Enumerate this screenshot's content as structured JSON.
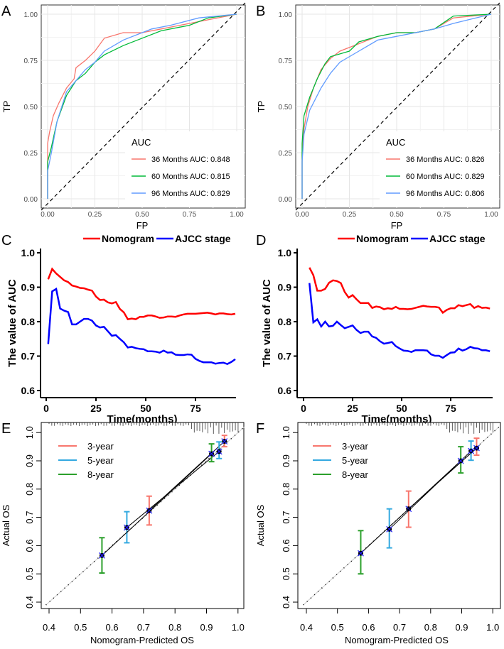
{
  "chart_data": [
    {
      "panel": "A",
      "type": "line",
      "xlabel": "FP",
      "ylabel": "TP",
      "xlim": [
        0,
        1
      ],
      "ylim": [
        0,
        1
      ],
      "xticks": [
        "0.00",
        "0.25",
        "0.50",
        "0.75",
        "1.00"
      ],
      "yticks": [
        "0.00",
        "0.25",
        "0.50",
        "0.75",
        "1.00"
      ],
      "grid": true,
      "reference_line": "diagonal dashed",
      "legend": {
        "title": "AUC",
        "placement": "bottom-right"
      },
      "series": [
        {
          "name": "36 Months AUC: 0.848",
          "color": "#F8766D",
          "points": [
            [
              0,
              0
            ],
            [
              0,
              0.3
            ],
            [
              0.01,
              0.36
            ],
            [
              0.03,
              0.45
            ],
            [
              0.06,
              0.52
            ],
            [
              0.1,
              0.6
            ],
            [
              0.14,
              0.65
            ],
            [
              0.15,
              0.71
            ],
            [
              0.2,
              0.75
            ],
            [
              0.25,
              0.8
            ],
            [
              0.3,
              0.87
            ],
            [
              0.4,
              0.9
            ],
            [
              0.5,
              0.9
            ],
            [
              0.6,
              0.92
            ],
            [
              0.75,
              0.95
            ],
            [
              1,
              1
            ]
          ]
        },
        {
          "name": "60 Months AUC: 0.815",
          "color": "#00BA38",
          "points": [
            [
              0,
              0
            ],
            [
              0,
              0.2
            ],
            [
              0.02,
              0.28
            ],
            [
              0.05,
              0.42
            ],
            [
              0.1,
              0.56
            ],
            [
              0.15,
              0.64
            ],
            [
              0.2,
              0.68
            ],
            [
              0.25,
              0.74
            ],
            [
              0.3,
              0.78
            ],
            [
              0.4,
              0.83
            ],
            [
              0.5,
              0.87
            ],
            [
              0.6,
              0.91
            ],
            [
              0.75,
              0.94
            ],
            [
              0.85,
              0.98
            ],
            [
              1,
              1
            ]
          ]
        },
        {
          "name": "96 Months AUC: 0.829",
          "color": "#619CFF",
          "points": [
            [
              0,
              0
            ],
            [
              0,
              0.15
            ],
            [
              0.02,
              0.25
            ],
            [
              0.05,
              0.42
            ],
            [
              0.1,
              0.58
            ],
            [
              0.15,
              0.64
            ],
            [
              0.2,
              0.7
            ],
            [
              0.25,
              0.74
            ],
            [
              0.3,
              0.8
            ],
            [
              0.4,
              0.86
            ],
            [
              0.5,
              0.9
            ],
            [
              0.55,
              0.92
            ],
            [
              0.65,
              0.94
            ],
            [
              0.8,
              0.98
            ],
            [
              1,
              1
            ]
          ]
        }
      ]
    },
    {
      "panel": "B",
      "type": "line",
      "xlabel": "FP",
      "ylabel": "TP",
      "xlim": [
        0,
        1
      ],
      "ylim": [
        0,
        1
      ],
      "xticks": [
        "0.00",
        "0.25",
        "0.50",
        "0.75",
        "1.00"
      ],
      "yticks": [
        "0.00",
        "0.25",
        "0.50",
        "0.75",
        "1.00"
      ],
      "grid": true,
      "reference_line": "diagonal dashed",
      "legend": {
        "title": "AUC",
        "placement": "bottom-right"
      },
      "series": [
        {
          "name": "36 Months AUC: 0.826",
          "color": "#F8766D",
          "points": [
            [
              0,
              0
            ],
            [
              0,
              0.25
            ],
            [
              0.01,
              0.38
            ],
            [
              0.03,
              0.5
            ],
            [
              0.06,
              0.6
            ],
            [
              0.1,
              0.7
            ],
            [
              0.15,
              0.76
            ],
            [
              0.2,
              0.8
            ],
            [
              0.3,
              0.84
            ],
            [
              0.4,
              0.88
            ],
            [
              0.5,
              0.9
            ],
            [
              0.6,
              0.9
            ],
            [
              0.7,
              0.92
            ],
            [
              0.8,
              0.98
            ],
            [
              1,
              1
            ]
          ]
        },
        {
          "name": "60 Months AUC: 0.829",
          "color": "#00BA38",
          "points": [
            [
              0,
              0
            ],
            [
              0,
              0.3
            ],
            [
              0.01,
              0.45
            ],
            [
              0.04,
              0.55
            ],
            [
              0.08,
              0.65
            ],
            [
              0.12,
              0.73
            ],
            [
              0.15,
              0.77
            ],
            [
              0.25,
              0.8
            ],
            [
              0.3,
              0.85
            ],
            [
              0.4,
              0.88
            ],
            [
              0.5,
              0.9
            ],
            [
              0.6,
              0.9
            ],
            [
              0.7,
              0.92
            ],
            [
              0.8,
              0.99
            ],
            [
              1,
              1
            ]
          ]
        },
        {
          "name": "96 Months AUC: 0.806",
          "color": "#619CFF",
          "points": [
            [
              0,
              0
            ],
            [
              0,
              0.2
            ],
            [
              0.01,
              0.35
            ],
            [
              0.04,
              0.48
            ],
            [
              0.1,
              0.6
            ],
            [
              0.15,
              0.68
            ],
            [
              0.2,
              0.74
            ],
            [
              0.3,
              0.8
            ],
            [
              0.4,
              0.86
            ],
            [
              0.5,
              0.88
            ],
            [
              0.6,
              0.9
            ],
            [
              0.7,
              0.92
            ],
            [
              0.8,
              0.95
            ],
            [
              1,
              1
            ]
          ]
        }
      ]
    },
    {
      "panel": "C",
      "type": "line",
      "xlabel": "Time(months)",
      "ylabel": "The value of AUC",
      "xlim": [
        0,
        97
      ],
      "ylim": [
        0.6,
        1.0
      ],
      "xticks": [
        "0",
        "25",
        "50",
        "75"
      ],
      "yticks": [
        "0.6",
        "0.7",
        "0.8",
        "0.9",
        "1.0"
      ],
      "grid": false,
      "legend": {
        "placement": "top"
      },
      "x": [
        1,
        3,
        5,
        7,
        9,
        11,
        13,
        15,
        17,
        19,
        21,
        23,
        25,
        27,
        29,
        31,
        33,
        35,
        37,
        39,
        41,
        43,
        45,
        47,
        49,
        51,
        53,
        55,
        57,
        59,
        61,
        63,
        65,
        67,
        69,
        71,
        73,
        75,
        77,
        79,
        81,
        83,
        85,
        87,
        89,
        91,
        93,
        95
      ],
      "series": [
        {
          "name": "Nomogram",
          "color": "#FF0000",
          "values": [
            0.923,
            0.953,
            0.94,
            0.93,
            0.92,
            0.915,
            0.905,
            0.902,
            0.898,
            0.897,
            0.893,
            0.89,
            0.873,
            0.863,
            0.864,
            0.856,
            0.853,
            0.857,
            0.837,
            0.827,
            0.807,
            0.809,
            0.807,
            0.814,
            0.814,
            0.818,
            0.818,
            0.815,
            0.811,
            0.812,
            0.815,
            0.815,
            0.814,
            0.818,
            0.821,
            0.823,
            0.823,
            0.823,
            0.824,
            0.825,
            0.826,
            0.824,
            0.821,
            0.824,
            0.824,
            0.822,
            0.821,
            0.823
          ]
        },
        {
          "name": "AJCC stage",
          "color": "#0000FF",
          "values": [
            0.735,
            0.888,
            0.895,
            0.838,
            0.832,
            0.828,
            0.792,
            0.792,
            0.8,
            0.808,
            0.808,
            0.803,
            0.789,
            0.783,
            0.785,
            0.772,
            0.759,
            0.761,
            0.75,
            0.74,
            0.725,
            0.727,
            0.723,
            0.721,
            0.72,
            0.714,
            0.714,
            0.713,
            0.71,
            0.716,
            0.71,
            0.711,
            0.704,
            0.703,
            0.703,
            0.705,
            0.704,
            0.692,
            0.686,
            0.682,
            0.682,
            0.682,
            0.678,
            0.68,
            0.681,
            0.677,
            0.683,
            0.691
          ]
        }
      ]
    },
    {
      "panel": "D",
      "type": "line",
      "xlabel": "Time(months)",
      "ylabel": "The value of AUC",
      "xlim": [
        0,
        97
      ],
      "ylim": [
        0.6,
        1.0
      ],
      "xticks": [
        "0",
        "25",
        "50",
        "75"
      ],
      "yticks": [
        "0.6",
        "0.7",
        "0.8",
        "0.9",
        "1.0"
      ],
      "grid": false,
      "legend": {
        "placement": "top"
      },
      "x": [
        3,
        5,
        7,
        9,
        11,
        13,
        15,
        17,
        19,
        21,
        23,
        25,
        27,
        29,
        31,
        33,
        35,
        37,
        39,
        41,
        43,
        45,
        47,
        49,
        51,
        53,
        55,
        57,
        59,
        61,
        63,
        65,
        67,
        69,
        71,
        73,
        75,
        77,
        79,
        81,
        83,
        85,
        87,
        89,
        91,
        93,
        95
      ],
      "series": [
        {
          "name": "Nomogram",
          "color": "#FF0000",
          "values": [
            0.957,
            0.935,
            0.89,
            0.89,
            0.895,
            0.913,
            0.92,
            0.918,
            0.912,
            0.886,
            0.87,
            0.877,
            0.865,
            0.854,
            0.854,
            0.854,
            0.84,
            0.844,
            0.842,
            0.836,
            0.839,
            0.837,
            0.843,
            0.837,
            0.837,
            0.836,
            0.837,
            0.84,
            0.843,
            0.846,
            0.844,
            0.843,
            0.843,
            0.841,
            0.826,
            0.834,
            0.839,
            0.839,
            0.848,
            0.845,
            0.848,
            0.851,
            0.84,
            0.845,
            0.84,
            0.841,
            0.838
          ]
        },
        {
          "name": "AJCC stage",
          "color": "#0000FF",
          "values": [
            0.912,
            0.798,
            0.807,
            0.786,
            0.8,
            0.786,
            0.788,
            0.8,
            0.79,
            0.781,
            0.785,
            0.789,
            0.776,
            0.767,
            0.771,
            0.771,
            0.757,
            0.753,
            0.743,
            0.736,
            0.738,
            0.741,
            0.729,
            0.722,
            0.716,
            0.715,
            0.712,
            0.717,
            0.717,
            0.717,
            0.716,
            0.705,
            0.701,
            0.701,
            0.695,
            0.703,
            0.71,
            0.711,
            0.722,
            0.716,
            0.72,
            0.727,
            0.723,
            0.722,
            0.717,
            0.717,
            0.714
          ]
        }
      ]
    },
    {
      "panel": "E",
      "type": "scatter",
      "xlabel": "Nomogram-Predicted  OS",
      "ylabel": "Actual  OS",
      "xlim": [
        0.38,
        1.02
      ],
      "ylim": [
        0.38,
        1.02
      ],
      "xticks": [
        "0.4",
        "0.5",
        "0.6",
        "0.7",
        "0.8",
        "0.9",
        "1.0"
      ],
      "yticks": [
        "0.4",
        "0.5",
        "0.6",
        "0.7",
        "0.8",
        "0.9",
        "1.0"
      ],
      "reference_line": "diagonal dotted",
      "legend": {
        "placement": "top-left"
      },
      "series": [
        {
          "name": "3-year",
          "color": "#F8766D",
          "points": [
            {
              "x": 0.718,
              "y": 0.724,
              "lo": 0.673,
              "hi": 0.775
            },
            {
              "x": 0.957,
              "y": 0.969,
              "lo": 0.95,
              "hi": 0.99
            }
          ]
        },
        {
          "name": "5-year",
          "color": "#33A9E0",
          "points": [
            {
              "x": 0.647,
              "y": 0.664,
              "lo": 0.61,
              "hi": 0.72
            },
            {
              "x": 0.94,
              "y": 0.933,
              "lo": 0.908,
              "hi": 0.967
            }
          ]
        },
        {
          "name": "8-year",
          "color": "#2CA02C",
          "points": [
            {
              "x": 0.568,
              "y": 0.565,
              "lo": 0.503,
              "hi": 0.628
            },
            {
              "x": 0.916,
              "y": 0.925,
              "lo": 0.897,
              "hi": 0.96
            }
          ]
        }
      ]
    },
    {
      "panel": "F",
      "type": "scatter",
      "xlabel": "Nomogram-Predicted  OS",
      "ylabel": "Actual  OS",
      "xlim": [
        0.38,
        1.02
      ],
      "ylim": [
        0.38,
        1.02
      ],
      "xticks": [
        "0.4",
        "0.5",
        "0.6",
        "0.7",
        "0.8",
        "0.9",
        "1.0"
      ],
      "yticks": [
        "0.4",
        "0.5",
        "0.6",
        "0.7",
        "0.8",
        "0.9",
        "1.0"
      ],
      "reference_line": "diagonal dotted",
      "legend": {
        "placement": "top-left"
      },
      "series": [
        {
          "name": "3-year",
          "color": "#F8766D",
          "points": [
            {
              "x": 0.729,
              "y": 0.73,
              "lo": 0.665,
              "hi": 0.793
            },
            {
              "x": 0.948,
              "y": 0.945,
              "lo": 0.92,
              "hi": 0.98
            }
          ]
        },
        {
          "name": "5-year",
          "color": "#33A9E0",
          "points": [
            {
              "x": 0.667,
              "y": 0.658,
              "lo": 0.592,
              "hi": 0.73
            },
            {
              "x": 0.93,
              "y": 0.935,
              "lo": 0.902,
              "hi": 0.97
            }
          ]
        },
        {
          "name": "8-year",
          "color": "#2CA02C",
          "points": [
            {
              "x": 0.575,
              "y": 0.573,
              "lo": 0.5,
              "hi": 0.653
            },
            {
              "x": 0.897,
              "y": 0.9,
              "lo": 0.857,
              "hi": 0.95
            }
          ]
        }
      ]
    }
  ]
}
